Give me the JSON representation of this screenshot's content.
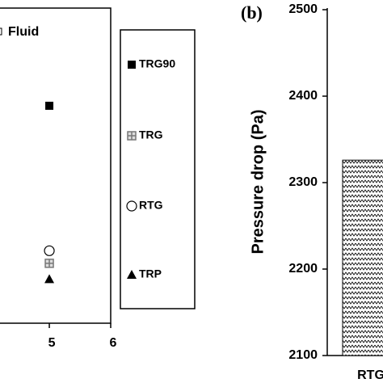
{
  "chart_data": [
    {
      "type": "scatter",
      "annotation": "Fluid",
      "xlim": [
        4.17,
        6
      ],
      "xticks": [
        5,
        6
      ],
      "ylim": [
        0,
        1
      ],
      "series": [
        {
          "name": "TRG90",
          "marker": "square",
          "color": "#000000",
          "x": [
            5
          ],
          "values": [
            0.69
          ]
        },
        {
          "name": "TRG",
          "marker": "square-plus",
          "color": "#777777",
          "x": [
            5
          ],
          "values": [
            0.19
          ]
        },
        {
          "name": "RTG",
          "marker": "circle",
          "color": "#000000",
          "x": [
            5
          ],
          "values": [
            0.23
          ]
        },
        {
          "name": "TRP",
          "marker": "triangle",
          "color": "#000000",
          "x": [
            5
          ],
          "values": [
            0.14
          ]
        }
      ]
    },
    {
      "type": "bar",
      "panel_label": "(b)",
      "ylabel": "Pressure drop (Pa)",
      "categories": [
        "RTG"
      ],
      "values": [
        2326
      ],
      "color": "#000000",
      "ylim": [
        2100,
        2500
      ],
      "yticks": [
        2100,
        2200,
        2300,
        2400,
        2500
      ]
    }
  ]
}
